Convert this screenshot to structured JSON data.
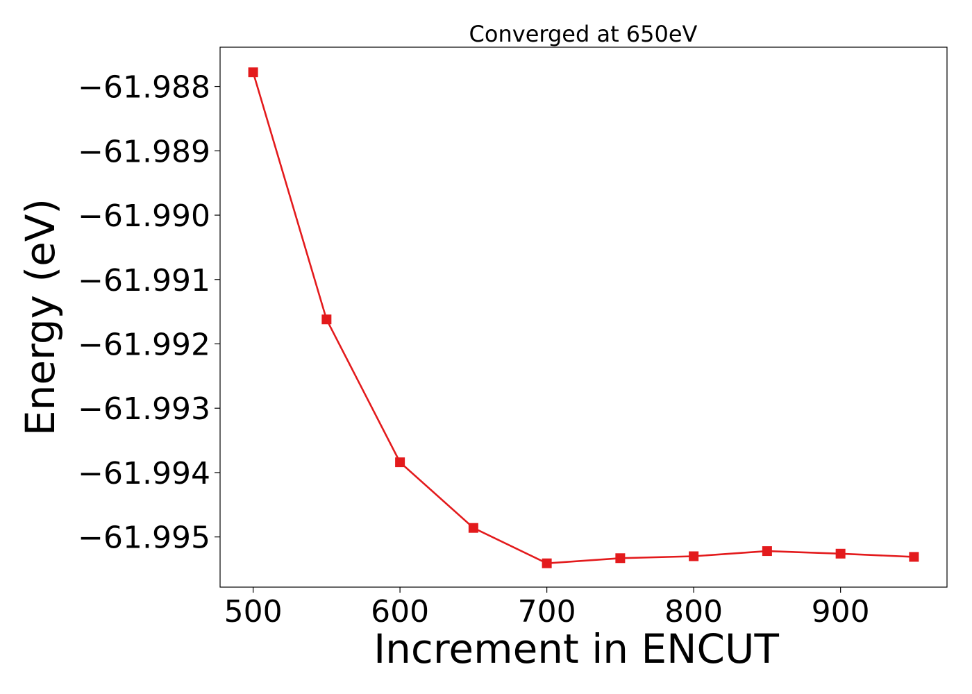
{
  "chart_data": {
    "type": "line",
    "title": "Converged at 650eV",
    "xlabel": "Increment in ENCUT",
    "ylabel": "Energy (eV)",
    "x": [
      500,
      550,
      600,
      650,
      700,
      750,
      800,
      850,
      900,
      950
    ],
    "series": [
      {
        "values": [
          -61.98778,
          -61.99162,
          -61.99384,
          -61.99486,
          -61.99541,
          -61.99533,
          -61.9953,
          -61.99522,
          -61.99526,
          -61.99531
        ],
        "color": "#e31a1c",
        "marker": "square"
      }
    ],
    "xticks": [
      500,
      600,
      700,
      800,
      900
    ],
    "xtick_labels": [
      "500",
      "600",
      "700",
      "800",
      "900"
    ],
    "yticks": [
      -61.988,
      -61.989,
      -61.99,
      -61.991,
      -61.992,
      -61.993,
      -61.994,
      -61.995
    ],
    "ytick_labels": [
      "−61.988",
      "−61.989",
      "−61.990",
      "−61.991",
      "−61.992",
      "−61.993",
      "−61.994",
      "−61.995"
    ],
    "xlim": [
      477.5,
      972.5
    ],
    "ylim": [
      -61.99578,
      -61.98739
    ],
    "grid": false,
    "legend": "none"
  }
}
